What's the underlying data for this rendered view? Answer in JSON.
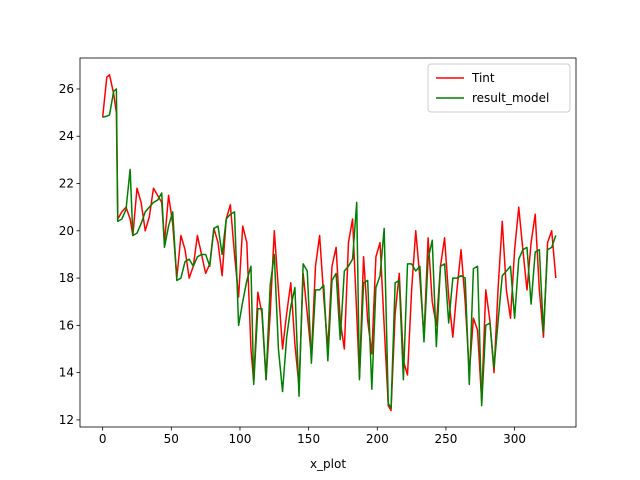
{
  "chart_data": {
    "type": "line",
    "xlabel": "x_plot",
    "x": [
      0,
      3,
      5,
      8,
      10,
      11,
      14,
      17,
      20,
      22,
      25,
      28,
      31,
      34,
      37,
      40,
      43,
      45,
      48,
      51,
      54,
      57,
      60,
      63,
      66,
      69,
      72,
      75,
      78,
      81,
      84,
      87,
      90,
      93,
      96,
      99,
      102,
      105,
      108,
      110,
      113,
      116,
      119,
      122,
      125,
      128,
      131,
      134,
      137,
      140,
      143,
      146,
      149,
      152,
      155,
      158,
      161,
      164,
      167,
      170,
      173,
      176,
      179,
      182,
      185,
      187,
      190,
      193,
      196,
      199,
      202,
      205,
      208,
      210,
      213,
      216,
      219,
      222,
      225,
      228,
      231,
      234,
      237,
      240,
      243,
      246,
      249,
      252,
      255,
      258,
      261,
      264,
      267,
      270,
      273,
      276,
      279,
      282,
      285,
      288,
      291,
      294,
      297,
      300,
      303,
      306,
      309,
      312,
      315,
      318,
      321,
      324,
      327,
      330
    ],
    "series": [
      {
        "name": "Tint",
        "color": "#ff0000",
        "values": [
          24.8,
          26.5,
          26.6,
          25.8,
          25,
          20.5,
          20.8,
          21,
          20.5,
          19.8,
          21.8,
          21.2,
          20,
          20.6,
          21.8,
          21.5,
          21.2,
          19.5,
          21.5,
          20.3,
          18,
          19.8,
          19.2,
          18,
          18.5,
          19.8,
          19,
          18.2,
          18.6,
          20.1,
          19.5,
          18.1,
          20.5,
          21.1,
          19,
          17.2,
          20.2,
          19.5,
          15,
          13.6,
          17.4,
          16.5,
          13.7,
          16.5,
          20,
          17.5,
          15,
          16.5,
          17.8,
          15.2,
          13.4,
          18.2,
          16.5,
          14.7,
          18.5,
          19.8,
          17.2,
          15,
          18.5,
          19.3,
          16.2,
          15,
          19.5,
          20.5,
          16.5,
          13.8,
          18.9,
          16.2,
          14.8,
          18.9,
          19.5,
          16,
          12.6,
          12.4,
          16.5,
          18.2,
          14.5,
          13.9,
          17.5,
          20,
          18,
          15.5,
          19.7,
          17,
          16,
          18.5,
          19.7,
          17.2,
          15.5,
          17.5,
          19.2,
          17,
          14,
          16.3,
          15.8,
          12.8,
          17.5,
          16.2,
          14,
          17.6,
          20.4,
          17.5,
          16.3,
          19.2,
          21,
          19.2,
          17.5,
          19.5,
          20.7,
          17.5,
          15.5,
          19.5,
          20,
          18
        ]
      },
      {
        "name": "result_model",
        "color": "#008000",
        "values": [
          24.8,
          24.85,
          24.9,
          25.9,
          26,
          20.4,
          20.5,
          20.9,
          22.6,
          19.8,
          19.9,
          20.3,
          20.8,
          21,
          21.2,
          21.3,
          21.6,
          19.3,
          20.2,
          20.8,
          17.9,
          18,
          18.7,
          18.8,
          18.5,
          18.9,
          19,
          19,
          18.5,
          20.1,
          20.2,
          19,
          20.5,
          20.7,
          20.8,
          16,
          17,
          17.9,
          18.5,
          13.5,
          16.7,
          16.7,
          13.7,
          17.7,
          19,
          15,
          13.2,
          15.5,
          16.8,
          17.6,
          13,
          18.6,
          18.3,
          14.4,
          17.5,
          17.5,
          17.7,
          14.5,
          17.9,
          18.2,
          15.4,
          18.3,
          18.5,
          18.8,
          21.2,
          13.7,
          17.8,
          17.9,
          13.3,
          17.6,
          18.1,
          20.1,
          12.7,
          12.5,
          17.8,
          17.9,
          13.7,
          18.6,
          18.6,
          18.3,
          18.5,
          15.3,
          18.8,
          19.6,
          15.1,
          18.5,
          18.6,
          16.1,
          18,
          18,
          18.1,
          18,
          13.5,
          18.4,
          18.5,
          12.6,
          16,
          16.1,
          14.2,
          16.2,
          18.1,
          18.3,
          18.5,
          16.3,
          18.8,
          19.2,
          19.3,
          16.9,
          19.1,
          19.2,
          15.7,
          19.2,
          19.3,
          19.8
        ]
      }
    ],
    "xlim": [
      -16.5,
      344.7
    ],
    "ylim": [
      11.7,
      27.31
    ],
    "xticks": [
      0,
      50,
      100,
      150,
      200,
      250,
      300
    ],
    "yticks": [
      12,
      14,
      16,
      18,
      20,
      22,
      24,
      26
    ],
    "legend": "upper right"
  }
}
